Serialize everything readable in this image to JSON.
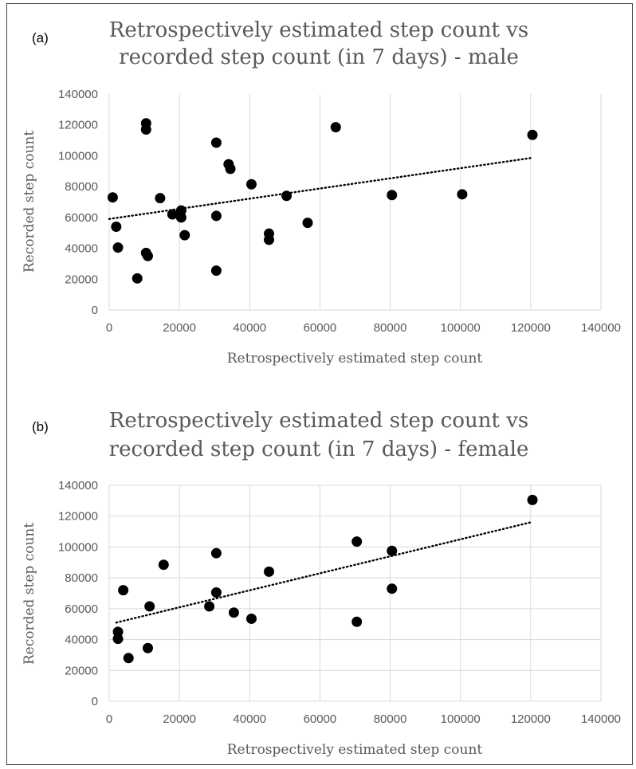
{
  "chart_data": [
    {
      "type": "scatter",
      "panel_label": "(a)",
      "title_lines": [
        "Retrospectively estimated step count vs",
        "recorded step count (in 7 days) - male"
      ],
      "xlabel": "Retrospectively estimated step count",
      "ylabel": "Recorded step count",
      "xlim": [
        0,
        140000
      ],
      "ylim": [
        0,
        140000
      ],
      "xticks": [
        0,
        20000,
        40000,
        60000,
        80000,
        100000,
        120000,
        140000
      ],
      "yticks": [
        0,
        20000,
        40000,
        60000,
        80000,
        100000,
        120000,
        140000
      ],
      "xtick_labels": [
        "0",
        "20000",
        "40000",
        "60000",
        "80000",
        "100000",
        "120000",
        "140000"
      ],
      "ytick_labels": [
        "0",
        "20000",
        "40000",
        "60000",
        "80000",
        "100000",
        "120000",
        "140000"
      ],
      "grid": "vertical",
      "point_color": "#000000",
      "trendline": {
        "style": "dotted",
        "x": [
          0,
          120000
        ],
        "y": [
          59000,
          98500
        ]
      },
      "points": [
        {
          "x": 1000,
          "y": 73000
        },
        {
          "x": 2000,
          "y": 54000
        },
        {
          "x": 2500,
          "y": 40500
        },
        {
          "x": 8000,
          "y": 20500
        },
        {
          "x": 10500,
          "y": 121000
        },
        {
          "x": 10500,
          "y": 117000
        },
        {
          "x": 10500,
          "y": 37000
        },
        {
          "x": 11000,
          "y": 35000
        },
        {
          "x": 14500,
          "y": 72500
        },
        {
          "x": 18000,
          "y": 62000
        },
        {
          "x": 20500,
          "y": 64500
        },
        {
          "x": 20500,
          "y": 60000
        },
        {
          "x": 21500,
          "y": 48500
        },
        {
          "x": 30500,
          "y": 108500
        },
        {
          "x": 30500,
          "y": 61000
        },
        {
          "x": 30500,
          "y": 25500
        },
        {
          "x": 34000,
          "y": 94500
        },
        {
          "x": 34500,
          "y": 91500
        },
        {
          "x": 40500,
          "y": 81500
        },
        {
          "x": 45500,
          "y": 49500
        },
        {
          "x": 45500,
          "y": 45500
        },
        {
          "x": 50500,
          "y": 74000
        },
        {
          "x": 56500,
          "y": 56500
        },
        {
          "x": 64500,
          "y": 118500
        },
        {
          "x": 80500,
          "y": 74500
        },
        {
          "x": 100500,
          "y": 75000
        },
        {
          "x": 120500,
          "y": 113500
        }
      ]
    },
    {
      "type": "scatter",
      "panel_label": "(b)",
      "title_lines": [
        "Retrospectively estimated step count vs",
        "recorded step count (in 7 days) - female"
      ],
      "xlabel": "Retrospectively estimated step count",
      "ylabel": "Recorded step count",
      "xlim": [
        0,
        140000
      ],
      "ylim": [
        0,
        140000
      ],
      "xticks": [
        0,
        20000,
        40000,
        60000,
        80000,
        100000,
        120000,
        140000
      ],
      "yticks": [
        0,
        20000,
        40000,
        60000,
        80000,
        100000,
        120000,
        140000
      ],
      "xtick_labels": [
        "0",
        "20000",
        "40000",
        "60000",
        "80000",
        "100000",
        "120000",
        "140000"
      ],
      "ytick_labels": [
        "0",
        "20000",
        "40000",
        "60000",
        "80000",
        "100000",
        "120000",
        "140000"
      ],
      "grid": "both",
      "point_color": "#000000",
      "trendline": {
        "style": "dotted",
        "x": [
          2000,
          120000
        ],
        "y": [
          51000,
          116000
        ]
      },
      "points": [
        {
          "x": 2500,
          "y": 45000
        },
        {
          "x": 2500,
          "y": 40500
        },
        {
          "x": 4000,
          "y": 72000
        },
        {
          "x": 5500,
          "y": 28000
        },
        {
          "x": 11000,
          "y": 34500
        },
        {
          "x": 11500,
          "y": 61500
        },
        {
          "x": 15500,
          "y": 88500
        },
        {
          "x": 28500,
          "y": 61500
        },
        {
          "x": 30500,
          "y": 96000
        },
        {
          "x": 30500,
          "y": 70500
        },
        {
          "x": 35500,
          "y": 57500
        },
        {
          "x": 40500,
          "y": 53500
        },
        {
          "x": 45500,
          "y": 84000
        },
        {
          "x": 70500,
          "y": 103500
        },
        {
          "x": 70500,
          "y": 51500
        },
        {
          "x": 80500,
          "y": 97500
        },
        {
          "x": 80500,
          "y": 73000
        },
        {
          "x": 120500,
          "y": 130500
        }
      ]
    }
  ]
}
